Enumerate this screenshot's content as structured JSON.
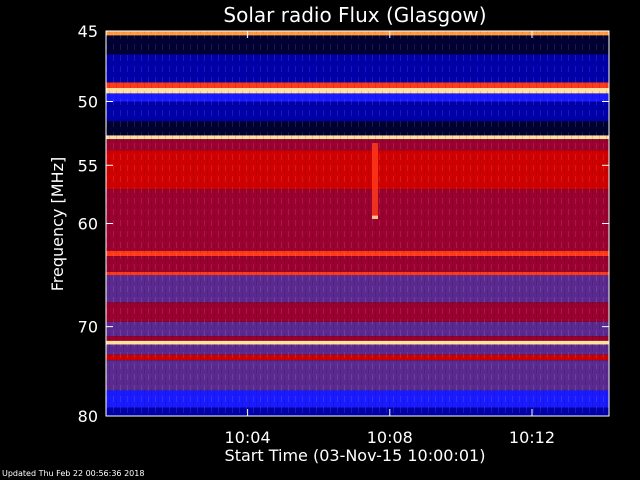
{
  "chart_data": {
    "type": "heatmap",
    "title": "Solar radio Flux (Glasgow)",
    "ylabel": "Frequency [MHz]",
    "xlabel": "Start Time (03-Nov-15 10:00:01)",
    "y_ticks": [
      45,
      50,
      55,
      60,
      70,
      80
    ],
    "x_ticks": [
      "10:04",
      "10:08",
      "10:12"
    ],
    "ylim": [
      80,
      45
    ],
    "y_scale": "log",
    "xlim": [
      "10:00:01",
      "10:14:10"
    ],
    "colormap": [
      "#000033",
      "#0000aa",
      "#1a1aff",
      "#5a2a90",
      "#9a0030",
      "#d00000",
      "#ff3a1a",
      "#ff9a40",
      "#ffe0a0"
    ],
    "bands": [
      {
        "from": 45,
        "to": 45.3,
        "level": 7
      },
      {
        "from": 45.3,
        "to": 46.6,
        "level": 0
      },
      {
        "from": 46.6,
        "to": 48.6,
        "level": 1
      },
      {
        "from": 48.6,
        "to": 49.0,
        "level": 6
      },
      {
        "from": 49.0,
        "to": 49.4,
        "level": 8
      },
      {
        "from": 49.4,
        "to": 50.0,
        "level": 2
      },
      {
        "from": 50.0,
        "to": 51.5,
        "level": 1
      },
      {
        "from": 51.5,
        "to": 52.6,
        "level": 0
      },
      {
        "from": 52.6,
        "to": 52.9,
        "level": 8
      },
      {
        "from": 52.9,
        "to": 53.8,
        "level": 4
      },
      {
        "from": 53.8,
        "to": 57.0,
        "level": 5
      },
      {
        "from": 57.0,
        "to": 60.0,
        "level": 4
      },
      {
        "from": 60.0,
        "to": 62.5,
        "level": 4
      },
      {
        "from": 62.5,
        "to": 63.0,
        "level": 6
      },
      {
        "from": 63.0,
        "to": 64.5,
        "level": 4
      },
      {
        "from": 64.5,
        "to": 64.8,
        "level": 6
      },
      {
        "from": 64.8,
        "to": 67.5,
        "level": 3
      },
      {
        "from": 67.5,
        "to": 69.5,
        "level": 4
      },
      {
        "from": 69.5,
        "to": 71.0,
        "level": 3
      },
      {
        "from": 71.0,
        "to": 71.5,
        "level": 4
      },
      {
        "from": 71.5,
        "to": 71.9,
        "level": 8
      },
      {
        "from": 71.9,
        "to": 73.0,
        "level": 3
      },
      {
        "from": 73.0,
        "to": 73.6,
        "level": 5
      },
      {
        "from": 73.6,
        "to": 77.0,
        "level": 3
      },
      {
        "from": 77.0,
        "to": 79.0,
        "level": 2
      },
      {
        "from": 79.0,
        "to": 80.0,
        "level": 1
      }
    ],
    "bursts": [
      {
        "time": "10:07:35",
        "freq_from": 53.2,
        "freq_to": 59.5,
        "level": 6
      },
      {
        "time": "10:07:35",
        "freq_from": 59.3,
        "freq_to": 59.6,
        "level": 8
      }
    ]
  },
  "footer": {
    "updated": "Updated Thu Feb 22 00:56:36 2018"
  }
}
